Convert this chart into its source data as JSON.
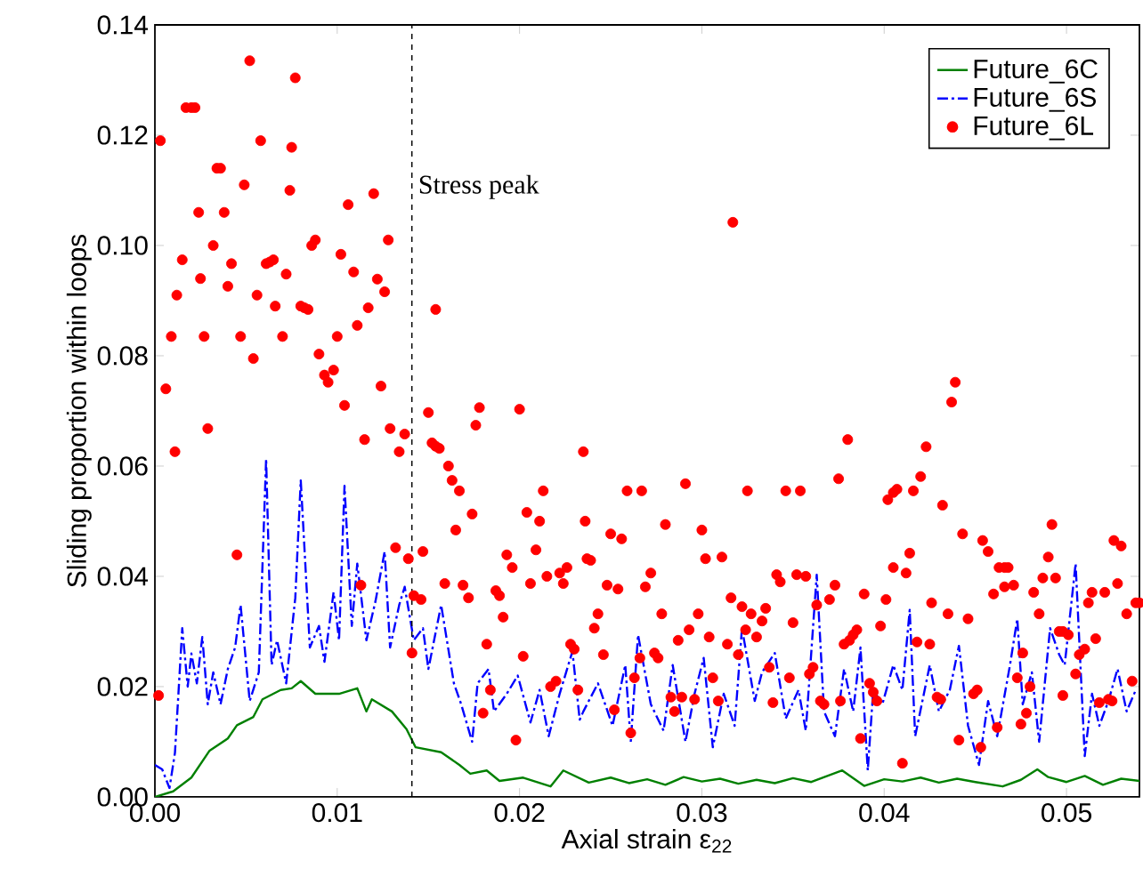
{
  "chart_data": {
    "type": "line",
    "xlabel": "Axial strain ε$_{22}$",
    "ylabel": "Sliding proportion within loops",
    "xlim": [
      0,
      0.054
    ],
    "ylim": [
      0,
      0.14
    ],
    "xticks": [
      {
        "value": 0,
        "label": "0.00"
      },
      0.01,
      0.02,
      0.03,
      0.04,
      0.05
    ],
    "yticks": [
      {
        "value": 0,
        "label": "0.00"
      },
      0.02,
      0.04,
      0.06,
      0.08,
      {
        "value": 0.1,
        "label": "0.10"
      },
      0.12,
      0.14
    ],
    "grid": false,
    "legend": "top right",
    "ref_lines": [
      {
        "axis": "x",
        "value": 0.0141,
        "label": "Stress peak",
        "color": "#000000",
        "line_style": "dashed"
      }
    ],
    "series": [
      {
        "name": "Future_6C",
        "color": "#008000",
        "line_style": "solid",
        "marker": "none",
        "x": [
          0,
          0.001,
          0.002,
          0.003,
          0.004,
          0.0045,
          0.0054,
          0.0059,
          0.0069,
          0.0075,
          0.008,
          0.0088,
          0.0101,
          0.0111,
          0.0116,
          0.0119,
          0.013,
          0.0138,
          0.0143,
          0.0157,
          0.0167,
          0.0173,
          0.0182,
          0.0189,
          0.0202,
          0.0217,
          0.0224,
          0.0238,
          0.025,
          0.026,
          0.027,
          0.028,
          0.029,
          0.03,
          0.031,
          0.032,
          0.033,
          0.034,
          0.035,
          0.036,
          0.0377,
          0.0389,
          0.04,
          0.041,
          0.042,
          0.043,
          0.044,
          0.045,
          0.0465,
          0.0475,
          0.0484,
          0.049,
          0.05,
          0.051,
          0.052,
          0.053,
          0.054
        ],
        "values": [
          0,
          0.001,
          0.0035,
          0.0084,
          0.0106,
          0.013,
          0.0145,
          0.0177,
          0.0194,
          0.0197,
          0.021,
          0.0187,
          0.0187,
          0.0197,
          0.0155,
          0.0177,
          0.0155,
          0.0123,
          0.009,
          0.0081,
          0.0058,
          0.0042,
          0.0048,
          0.0029,
          0.0035,
          0.0019,
          0.0048,
          0.0026,
          0.0035,
          0.0025,
          0.0032,
          0.0022,
          0.0036,
          0.0028,
          0.0033,
          0.0024,
          0.0031,
          0.0025,
          0.0034,
          0.0027,
          0.0048,
          0.002,
          0.0032,
          0.0028,
          0.0035,
          0.0026,
          0.0033,
          0.0027,
          0.0019,
          0.0031,
          0.005,
          0.0036,
          0.0027,
          0.0038,
          0.0022,
          0.0033,
          0.0029
        ]
      },
      {
        "name": "Future_6S",
        "color": "#0000ff",
        "line_style": "dashdot",
        "marker": "none",
        "x": [
          0,
          0.0004,
          0.0008,
          0.0011,
          0.0015,
          0.0018,
          0.002,
          0.0023,
          0.0026,
          0.0029,
          0.0032,
          0.0036,
          0.004,
          0.0044,
          0.0047,
          0.0052,
          0.0057,
          0.0061,
          0.0064,
          0.0067,
          0.0072,
          0.0077,
          0.008,
          0.0085,
          0.009,
          0.0093,
          0.0098,
          0.0101,
          0.0104,
          0.0108,
          0.0111,
          0.0116,
          0.0121,
          0.0126,
          0.0129,
          0.0134,
          0.0137,
          0.0142,
          0.0147,
          0.015,
          0.0157,
          0.0164,
          0.0168,
          0.0174,
          0.0177,
          0.0183,
          0.0186,
          0.0193,
          0.0199,
          0.0206,
          0.0211,
          0.0216,
          0.0222,
          0.0229,
          0.0233,
          0.0235,
          0.0243,
          0.0251,
          0.0258,
          0.0261,
          0.0265,
          0.0272,
          0.0279,
          0.0284,
          0.0291,
          0.0296,
          0.0301,
          0.0306,
          0.0312,
          0.0318,
          0.0322,
          0.0329,
          0.0333,
          0.034,
          0.0346,
          0.0353,
          0.0357,
          0.0363,
          0.0367,
          0.0373,
          0.0378,
          0.0383,
          0.0387,
          0.0391,
          0.0394,
          0.0399,
          0.0405,
          0.041,
          0.0414,
          0.0417,
          0.0425,
          0.043,
          0.0436,
          0.0441,
          0.0446,
          0.0452,
          0.0457,
          0.0462,
          0.0469,
          0.0473,
          0.0476,
          0.0481,
          0.0485,
          0.0491,
          0.0496,
          0.0499,
          0.0505,
          0.051,
          0.0514,
          0.0518,
          0.0523,
          0.0528,
          0.0533,
          0.0538
        ],
        "values": [
          0.0058,
          0.005,
          0.0016,
          0.008,
          0.0306,
          0.02,
          0.026,
          0.0206,
          0.029,
          0.0168,
          0.0226,
          0.0168,
          0.0232,
          0.0271,
          0.0348,
          0.0174,
          0.0226,
          0.0613,
          0.0239,
          0.0284,
          0.0206,
          0.0361,
          0.0574,
          0.0271,
          0.031,
          0.0245,
          0.0371,
          0.0284,
          0.0564,
          0.031,
          0.0423,
          0.0284,
          0.0355,
          0.0445,
          0.0271,
          0.0348,
          0.0381,
          0.0284,
          0.0306,
          0.0232,
          0.0348,
          0.0206,
          0.0168,
          0.01,
          0.0206,
          0.0232,
          0.0155,
          0.0187,
          0.022,
          0.0135,
          0.0194,
          0.011,
          0.0187,
          0.0264,
          0.014,
          0.0155,
          0.0206,
          0.0129,
          0.0239,
          0.01,
          0.0294,
          0.0168,
          0.012,
          0.0239,
          0.01,
          0.0187,
          0.0252,
          0.009,
          0.0187,
          0.0129,
          0.0306,
          0.0174,
          0.0226,
          0.0261,
          0.0142,
          0.0194,
          0.012,
          0.0403,
          0.0155,
          0.011,
          0.0232,
          0.0155,
          0.0271,
          0.0048,
          0.0194,
          0.0168,
          0.0239,
          0.0194,
          0.0339,
          0.011,
          0.0239,
          0.0155,
          0.0194,
          0.0274,
          0.0129,
          0.0058,
          0.0174,
          0.011,
          0.0239,
          0.0323,
          0.0168,
          0.0226,
          0.01,
          0.0306,
          0.0258,
          0.0239,
          0.0423,
          0.0074,
          0.0187,
          0.0129,
          0.0174,
          0.0232,
          0.0155,
          0.0194
        ]
      },
      {
        "name": "Future_6L",
        "type": "scatter",
        "color": "#ff0000",
        "marker": "circle",
        "x": [
          0.0003,
          0.0006,
          0.0009,
          0.0011,
          0.0012,
          0.0015,
          0.0017,
          0.002,
          0.0022,
          0.0024,
          0.0025,
          0.0027,
          0.0029,
          0.0032,
          0.0034,
          0.0036,
          0.0038,
          0.004,
          0.0042,
          0.0047,
          0.0049,
          0.0052,
          0.0054,
          0.0056,
          0.0058,
          0.0061,
          0.0063,
          0.0065,
          0.0066,
          0.007,
          0.0072,
          0.0074,
          0.0075,
          0.0077,
          0.008,
          0.0082,
          0.0084,
          0.0086,
          0.0088,
          0.009,
          0.0093,
          0.0095,
          0.0098,
          0.01,
          0.0102,
          0.0104,
          0.0106,
          0.0109,
          0.0111,
          0.0115,
          0.0117,
          0.012,
          0.0122,
          0.0124,
          0.0126,
          0.0128,
          0.0129,
          0.0134,
          0.0137,
          0.015,
          0.0152,
          0.0154,
          0.0156,
          0.0154,
          0.0176,
          0.0178,
          0.02,
          0.0235,
          0.0002,
          0.0045,
          0.0113,
          0.0132,
          0.0139,
          0.0142,
          0.0146,
          0.0141,
          0.0147,
          0.0159,
          0.0161,
          0.0163,
          0.0165,
          0.0167,
          0.0169,
          0.0172,
          0.0174,
          0.0182,
          0.018,
          0.0184,
          0.0187,
          0.0189,
          0.0191,
          0.0193,
          0.0196,
          0.0198,
          0.0202,
          0.0204,
          0.0206,
          0.0209,
          0.0211,
          0.0213,
          0.0215,
          0.0217,
          0.022,
          0.0222,
          0.0224,
          0.0226,
          0.0228,
          0.023,
          0.0232,
          0.0236,
          0.0237,
          0.0239,
          0.0241,
          0.0243,
          0.0246,
          0.0248,
          0.025,
          0.0252,
          0.0254,
          0.0256,
          0.0259,
          0.0267,
          0.0261,
          0.0263,
          0.0266,
          0.0269,
          0.0272,
          0.0274,
          0.0276,
          0.0278,
          0.028,
          0.0283,
          0.0285,
          0.0287,
          0.0289,
          0.0291,
          0.0293,
          0.0296,
          0.0298,
          0.03,
          0.0302,
          0.0304,
          0.0306,
          0.0309,
          0.0311,
          0.0314,
          0.0316,
          0.0317,
          0.032,
          0.0322,
          0.0324,
          0.0325,
          0.0327,
          0.033,
          0.0333,
          0.0335,
          0.0337,
          0.0339,
          0.0341,
          0.0343,
          0.0346,
          0.0354,
          0.0348,
          0.035,
          0.0352,
          0.0357,
          0.0359,
          0.0361,
          0.0363,
          0.0365,
          0.0367,
          0.037,
          0.0373,
          0.0375,
          0.0376,
          0.0378,
          0.0381,
          0.0383,
          0.0385,
          0.038,
          0.0387,
          0.0389,
          0.0392,
          0.0394,
          0.0396,
          0.0398,
          0.0401,
          0.0402,
          0.0405,
          0.0407,
          0.0405,
          0.041,
          0.0412,
          0.0414,
          0.0416,
          0.0418,
          0.0425,
          0.042,
          0.0423,
          0.0426,
          0.0429,
          0.0431,
          0.0432,
          0.0435,
          0.0437,
          0.0439,
          0.0441,
          0.0443,
          0.0446,
          0.0449,
          0.0451,
          0.0453,
          0.0454,
          0.0457,
          0.046,
          0.0462,
          0.0463,
          0.0466,
          0.0468,
          0.0466,
          0.0471,
          0.0473,
          0.0475,
          0.0476,
          0.0478,
          0.048,
          0.0482,
          0.0485,
          0.0487,
          0.049,
          0.0492,
          0.0494,
          0.0496,
          0.0498,
          0.0501,
          0.0498,
          0.0505,
          0.0507,
          0.051,
          0.0512,
          0.0514,
          0.0521,
          0.0516,
          0.0518,
          0.0523,
          0.0525,
          0.0526,
          0.053,
          0.0528,
          0.0533,
          0.0536,
          0.0538,
          0.054
        ],
        "values": [
          0.119,
          0.074,
          0.0835,
          0.0626,
          0.091,
          0.0974,
          0.125,
          0.125,
          0.125,
          0.106,
          0.094,
          0.0835,
          0.0668,
          0.1,
          0.114,
          0.114,
          0.106,
          0.0926,
          0.0967,
          0.0835,
          0.111,
          0.1335,
          0.0795,
          0.091,
          0.119,
          0.0967,
          0.097,
          0.0974,
          0.089,
          0.0835,
          0.0948,
          0.11,
          0.1178,
          0.1304,
          0.089,
          0.0887,
          0.0884,
          0.1,
          0.101,
          0.0803,
          0.0765,
          0.0752,
          0.0774,
          0.0835,
          0.0984,
          0.071,
          0.1074,
          0.0952,
          0.0855,
          0.0648,
          0.0887,
          0.1094,
          0.0939,
          0.0745,
          0.0916,
          0.101,
          0.0668,
          0.0626,
          0.0658,
          0.0697,
          0.0642,
          0.0636,
          0.0632,
          0.0884,
          0.0674,
          0.0706,
          0.0703,
          0.0626,
          0.0184,
          0.0439,
          0.0384,
          0.0452,
          0.0432,
          0.0365,
          0.0358,
          0.0261,
          0.0445,
          0.0387,
          0.06,
          0.0574,
          0.0484,
          0.0555,
          0.0384,
          0.0361,
          0.0513,
          0.0277,
          0.0152,
          0.0194,
          0.0374,
          0.0365,
          0.0326,
          0.0439,
          0.0416,
          0.0103,
          0.0255,
          0.0516,
          0.0387,
          0.0448,
          0.05,
          0.0555,
          0.04,
          0.02,
          0.021,
          0.0406,
          0.0387,
          0.0416,
          0.0277,
          0.0268,
          0.0194,
          0.05,
          0.0432,
          0.0429,
          0.0306,
          0.0332,
          0.0258,
          0.0384,
          0.0477,
          0.0158,
          0.0377,
          0.0468,
          0.0555,
          0.0555,
          0.0116,
          0.0216,
          0.0252,
          0.0381,
          0.0406,
          0.0261,
          0.0252,
          0.0332,
          0.0494,
          0.0181,
          0.0155,
          0.0284,
          0.0181,
          0.0568,
          0.0303,
          0.0177,
          0.0332,
          0.0484,
          0.0432,
          0.029,
          0.0216,
          0.0174,
          0.0435,
          0.0277,
          0.0361,
          0.1042,
          0.0258,
          0.0345,
          0.0303,
          0.0555,
          0.0332,
          0.029,
          0.0319,
          0.0342,
          0.0235,
          0.0171,
          0.0403,
          0.039,
          0.0555,
          0.0555,
          0.0216,
          0.0316,
          0.0403,
          0.04,
          0.0223,
          0.0235,
          0.0348,
          0.0174,
          0.0168,
          0.0358,
          0.0384,
          0.0577,
          0.0174,
          0.0277,
          0.0284,
          0.0294,
          0.0303,
          0.0648,
          0.0106,
          0.0368,
          0.0206,
          0.019,
          0.0174,
          0.031,
          0.0358,
          0.0539,
          0.0552,
          0.0558,
          0.0416,
          0.0061,
          0.0406,
          0.0442,
          0.0555,
          0.0281,
          0.0277,
          0.0581,
          0.0635,
          0.0352,
          0.0181,
          0.0177,
          0.0529,
          0.0332,
          0.0716,
          0.0752,
          0.0103,
          0.0477,
          0.0323,
          0.0187,
          0.0194,
          0.009,
          0.0465,
          0.0445,
          0.0368,
          0.0126,
          0.0416,
          0.0416,
          0.0416,
          0.0381,
          0.0384,
          0.0216,
          0.0132,
          0.0261,
          0.0152,
          0.02,
          0.0371,
          0.0332,
          0.0397,
          0.0435,
          0.0494,
          0.0397,
          0.03,
          0.03,
          0.0294,
          0.0184,
          0.0223,
          0.0258,
          0.0268,
          0.0352,
          0.0371,
          0.0371,
          0.0287,
          0.0171,
          0.0177,
          0.0174,
          0.0465,
          0.0455,
          0.0387,
          0.0332,
          0.021,
          0.0352,
          0.0352
        ]
      }
    ]
  }
}
